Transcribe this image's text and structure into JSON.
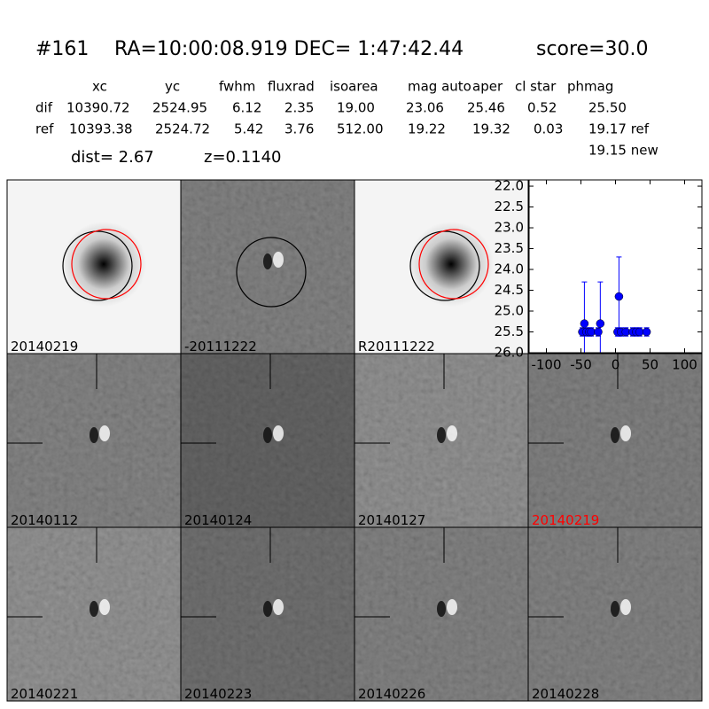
{
  "header": {
    "id": "#161",
    "coords": "RA=10:00:08.919 DEC= 1:47:42.44",
    "score": "score=30.0"
  },
  "table": {
    "columns": [
      "xc",
      "yc",
      "fwhm",
      "fluxrad",
      "isoarea",
      "mag auto",
      "aper",
      "cl star",
      "phmag"
    ],
    "rows": [
      [
        "dif",
        "10390.72",
        "2524.95",
        "6.12",
        "2.35",
        "19.00",
        "23.06",
        "25.46",
        "0.52",
        "25.50"
      ],
      [
        "ref",
        "10393.38",
        "2524.72",
        "5.42",
        "3.76",
        "512.00",
        "19.22",
        "19.32",
        "0.03",
        "19.17 ref"
      ]
    ],
    "extra": "19.15 new"
  },
  "distance": {
    "dist": "dist=  2.67",
    "z": "z=0.1140"
  },
  "stamps": [
    "20140219",
    "-20111222",
    "R20111222",
    "20140112",
    "20140124",
    "20140127",
    "20140219",
    "20140221",
    "20140223",
    "20140226",
    "20140228"
  ],
  "chart_data": {
    "type": "scatter",
    "xlim": [
      -125,
      125
    ],
    "ylim": [
      26.0,
      21.85
    ],
    "xticks": [
      -100,
      -50,
      0,
      50,
      100
    ],
    "yticks": [
      {
        "value": 22.0,
        "label": "22.0"
      },
      22.5,
      {
        "value": 23.0,
        "label": "23.0"
      },
      23.5,
      {
        "value": 24.0,
        "label": "24.0"
      },
      24.5,
      {
        "value": 25.0,
        "label": "25.0"
      },
      25.5,
      {
        "value": 26.0,
        "label": "26.0"
      }
    ],
    "series": [
      {
        "color": "#0000ff",
        "x": [
          -48,
          -45,
          -42,
          -38,
          -35,
          -25,
          -22,
          3,
          5,
          8,
          15,
          25,
          30,
          35,
          45
        ],
        "values": [
          25.5,
          25.3,
          25.5,
          25.5,
          25.5,
          25.5,
          25.3,
          25.5,
          24.65,
          25.5,
          25.5,
          25.5,
          25.5,
          25.5,
          25.5
        ],
        "errors": [
          0.1,
          1.0,
          0.1,
          0.1,
          0.1,
          0.1,
          1.0,
          0.1,
          0.95,
          0.1,
          0.1,
          0.1,
          0.1,
          0.1,
          0.1
        ]
      }
    ]
  }
}
